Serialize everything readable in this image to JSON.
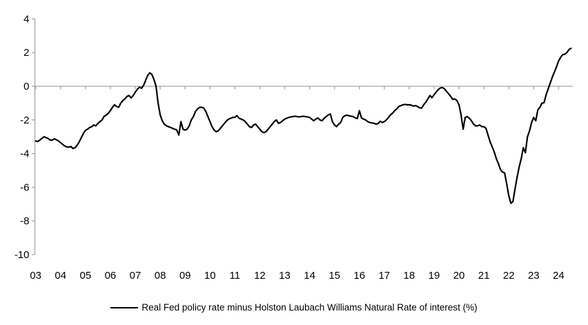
{
  "chart_data": {
    "type": "line",
    "title": "",
    "legend_label": "Real Fed policy rate minus Holston Laubach Williams Natural Rate of interest (%)",
    "frequency": "monthly",
    "x_start": "2003-01",
    "x_end": "2024-07",
    "x_tick_labels": [
      "03",
      "04",
      "05",
      "06",
      "07",
      "08",
      "09",
      "10",
      "11",
      "12",
      "13",
      "14",
      "15",
      "16",
      "17",
      "18",
      "19",
      "20",
      "21",
      "22",
      "23",
      "24"
    ],
    "y_ticks": [
      4,
      2,
      0,
      -2,
      -4,
      -6,
      -8,
      -10
    ],
    "ylim": [
      -10,
      4
    ],
    "zero_line": true,
    "grid": "none",
    "legend_position": "bottom-center",
    "line_color": "#000000",
    "axis_color": "#a6a6a6",
    "values": [
      -3.25,
      -3.28,
      -3.2,
      -3.1,
      -3.0,
      -3.05,
      -3.1,
      -3.2,
      -3.2,
      -3.12,
      -3.18,
      -3.25,
      -3.35,
      -3.45,
      -3.55,
      -3.6,
      -3.62,
      -3.58,
      -3.7,
      -3.65,
      -3.5,
      -3.3,
      -3.05,
      -2.8,
      -2.62,
      -2.55,
      -2.45,
      -2.4,
      -2.3,
      -2.35,
      -2.2,
      -2.1,
      -2.0,
      -1.78,
      -1.72,
      -1.6,
      -1.45,
      -1.25,
      -1.1,
      -1.2,
      -1.25,
      -1.0,
      -0.85,
      -0.75,
      -0.6,
      -0.55,
      -0.7,
      -0.55,
      -0.35,
      -0.18,
      -0.05,
      -0.12,
      0.05,
      0.35,
      0.65,
      0.8,
      0.7,
      0.4,
      0.0,
      -1.0,
      -1.7,
      -2.05,
      -2.25,
      -2.35,
      -2.4,
      -2.45,
      -2.5,
      -2.55,
      -2.6,
      -2.9,
      -2.1,
      -2.55,
      -2.6,
      -2.55,
      -2.35,
      -2.0,
      -1.8,
      -1.5,
      -1.35,
      -1.25,
      -1.25,
      -1.3,
      -1.5,
      -1.8,
      -2.1,
      -2.4,
      -2.6,
      -2.7,
      -2.65,
      -2.5,
      -2.35,
      -2.2,
      -2.05,
      -1.95,
      -1.9,
      -1.85,
      -1.85,
      -1.75,
      -1.9,
      -1.95,
      -2.0,
      -2.1,
      -2.25,
      -2.4,
      -2.45,
      -2.3,
      -2.25,
      -2.4,
      -2.55,
      -2.7,
      -2.75,
      -2.7,
      -2.55,
      -2.4,
      -2.25,
      -2.1,
      -2.0,
      -2.2,
      -2.15,
      -2.05,
      -1.95,
      -1.9,
      -1.85,
      -1.82,
      -1.8,
      -1.78,
      -1.8,
      -1.82,
      -1.8,
      -1.78,
      -1.8,
      -1.82,
      -1.85,
      -1.95,
      -2.05,
      -1.95,
      -1.88,
      -2.0,
      -2.05,
      -1.9,
      -1.8,
      -1.7,
      -1.65,
      -2.1,
      -2.3,
      -2.4,
      -2.25,
      -2.15,
      -1.85,
      -1.75,
      -1.72,
      -1.75,
      -1.78,
      -1.8,
      -1.88,
      -1.92,
      -1.45,
      -1.88,
      -1.95,
      -2.0,
      -2.1,
      -2.15,
      -2.18,
      -2.2,
      -2.25,
      -2.22,
      -2.08,
      -2.15,
      -2.1,
      -2.0,
      -1.85,
      -1.7,
      -1.6,
      -1.45,
      -1.35,
      -1.2,
      -1.15,
      -1.1,
      -1.08,
      -1.1,
      -1.1,
      -1.12,
      -1.18,
      -1.15,
      -1.2,
      -1.28,
      -1.3,
      -1.1,
      -0.95,
      -0.75,
      -0.55,
      -0.68,
      -0.5,
      -0.35,
      -0.2,
      -0.1,
      -0.08,
      -0.15,
      -0.3,
      -0.45,
      -0.6,
      -0.78,
      -0.75,
      -0.85,
      -1.1,
      -1.7,
      -2.55,
      -1.85,
      -1.8,
      -1.9,
      -2.05,
      -2.25,
      -2.35,
      -2.35,
      -2.3,
      -2.4,
      -2.4,
      -2.5,
      -2.9,
      -3.3,
      -3.6,
      -3.9,
      -4.3,
      -4.6,
      -4.95,
      -5.1,
      -5.15,
      -5.8,
      -6.5,
      -6.95,
      -6.85,
      -6.1,
      -5.4,
      -4.8,
      -4.3,
      -3.65,
      -3.95,
      -3.0,
      -2.65,
      -2.15,
      -1.85,
      -2.05,
      -1.4,
      -1.25,
      -1.0,
      -0.98,
      -0.5,
      -0.15,
      0.2,
      0.55,
      0.85,
      1.15,
      1.5,
      1.72,
      1.88,
      1.9,
      2.0,
      2.18,
      2.25
    ]
  }
}
